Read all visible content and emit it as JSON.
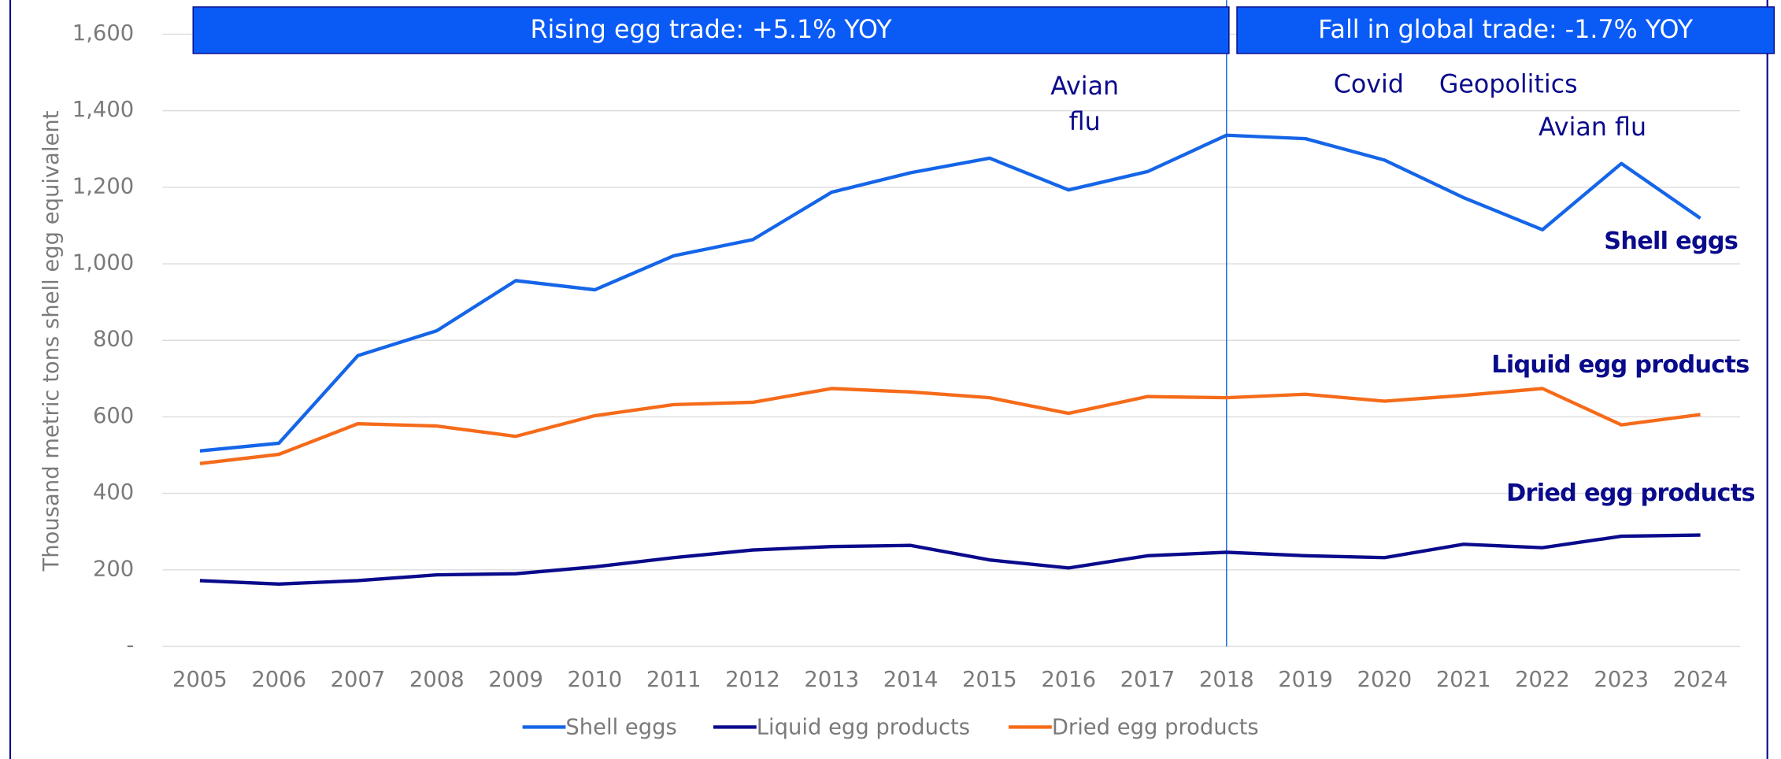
{
  "chart_data": {
    "type": "line",
    "y_label": "Thousand metric tons shell egg equivalent",
    "categories": [
      "2005",
      "2006",
      "2007",
      "2008",
      "2009",
      "2010",
      "2011",
      "2012",
      "2013",
      "2014",
      "2015",
      "2016",
      "2017",
      "2018",
      "2019",
      "2020",
      "2021",
      "2022",
      "2023",
      "2024"
    ],
    "series": [
      {
        "name": "Shell eggs",
        "color": "#1565e8",
        "values": [
          511,
          531,
          760,
          825,
          956,
          932,
          1021,
          1063,
          1187,
          1238,
          1276,
          1193,
          1241,
          1336,
          1327,
          1271,
          1173,
          1089,
          1262,
          1119
        ]
      },
      {
        "name": "Liquid egg products",
        "color": "#0a0a8c",
        "values": [
          172,
          163,
          172,
          187,
          190,
          208,
          232,
          252,
          261,
          264,
          226,
          205,
          237,
          246,
          237,
          232,
          267,
          258,
          288,
          291
        ]
      },
      {
        "name": "Dried egg products",
        "color": "#f56b1a",
        "values": [
          478,
          502,
          582,
          576,
          549,
          603,
          632,
          638,
          674,
          665,
          650,
          609,
          653,
          650,
          659,
          641,
          656,
          674,
          579,
          606
        ]
      }
    ],
    "ylim": [
      0,
      1600
    ],
    "yticks": [
      {
        "value": 0,
        "label": "-"
      },
      200,
      400,
      600,
      800,
      {
        "value": 1000,
        "label": "1,000"
      },
      {
        "value": 1200,
        "label": "1,200"
      },
      {
        "value": 1400,
        "label": "1,400"
      },
      {
        "value": 1600,
        "label": "1,600"
      }
    ],
    "grid": true,
    "legend": "bottom",
    "banners": [
      "Rising egg trade: +5.1% YOY",
      "Fall in global trade: -1.7% YOY"
    ],
    "divider": "2018",
    "annotations": [
      [
        "Avian",
        "flu"
      ],
      [
        "Covid"
      ],
      [
        "Geopolitics"
      ],
      [
        "Avian flu"
      ]
    ],
    "line_labels": [
      "Shell eggs",
      "Liquid egg products",
      "Dried egg products"
    ]
  }
}
